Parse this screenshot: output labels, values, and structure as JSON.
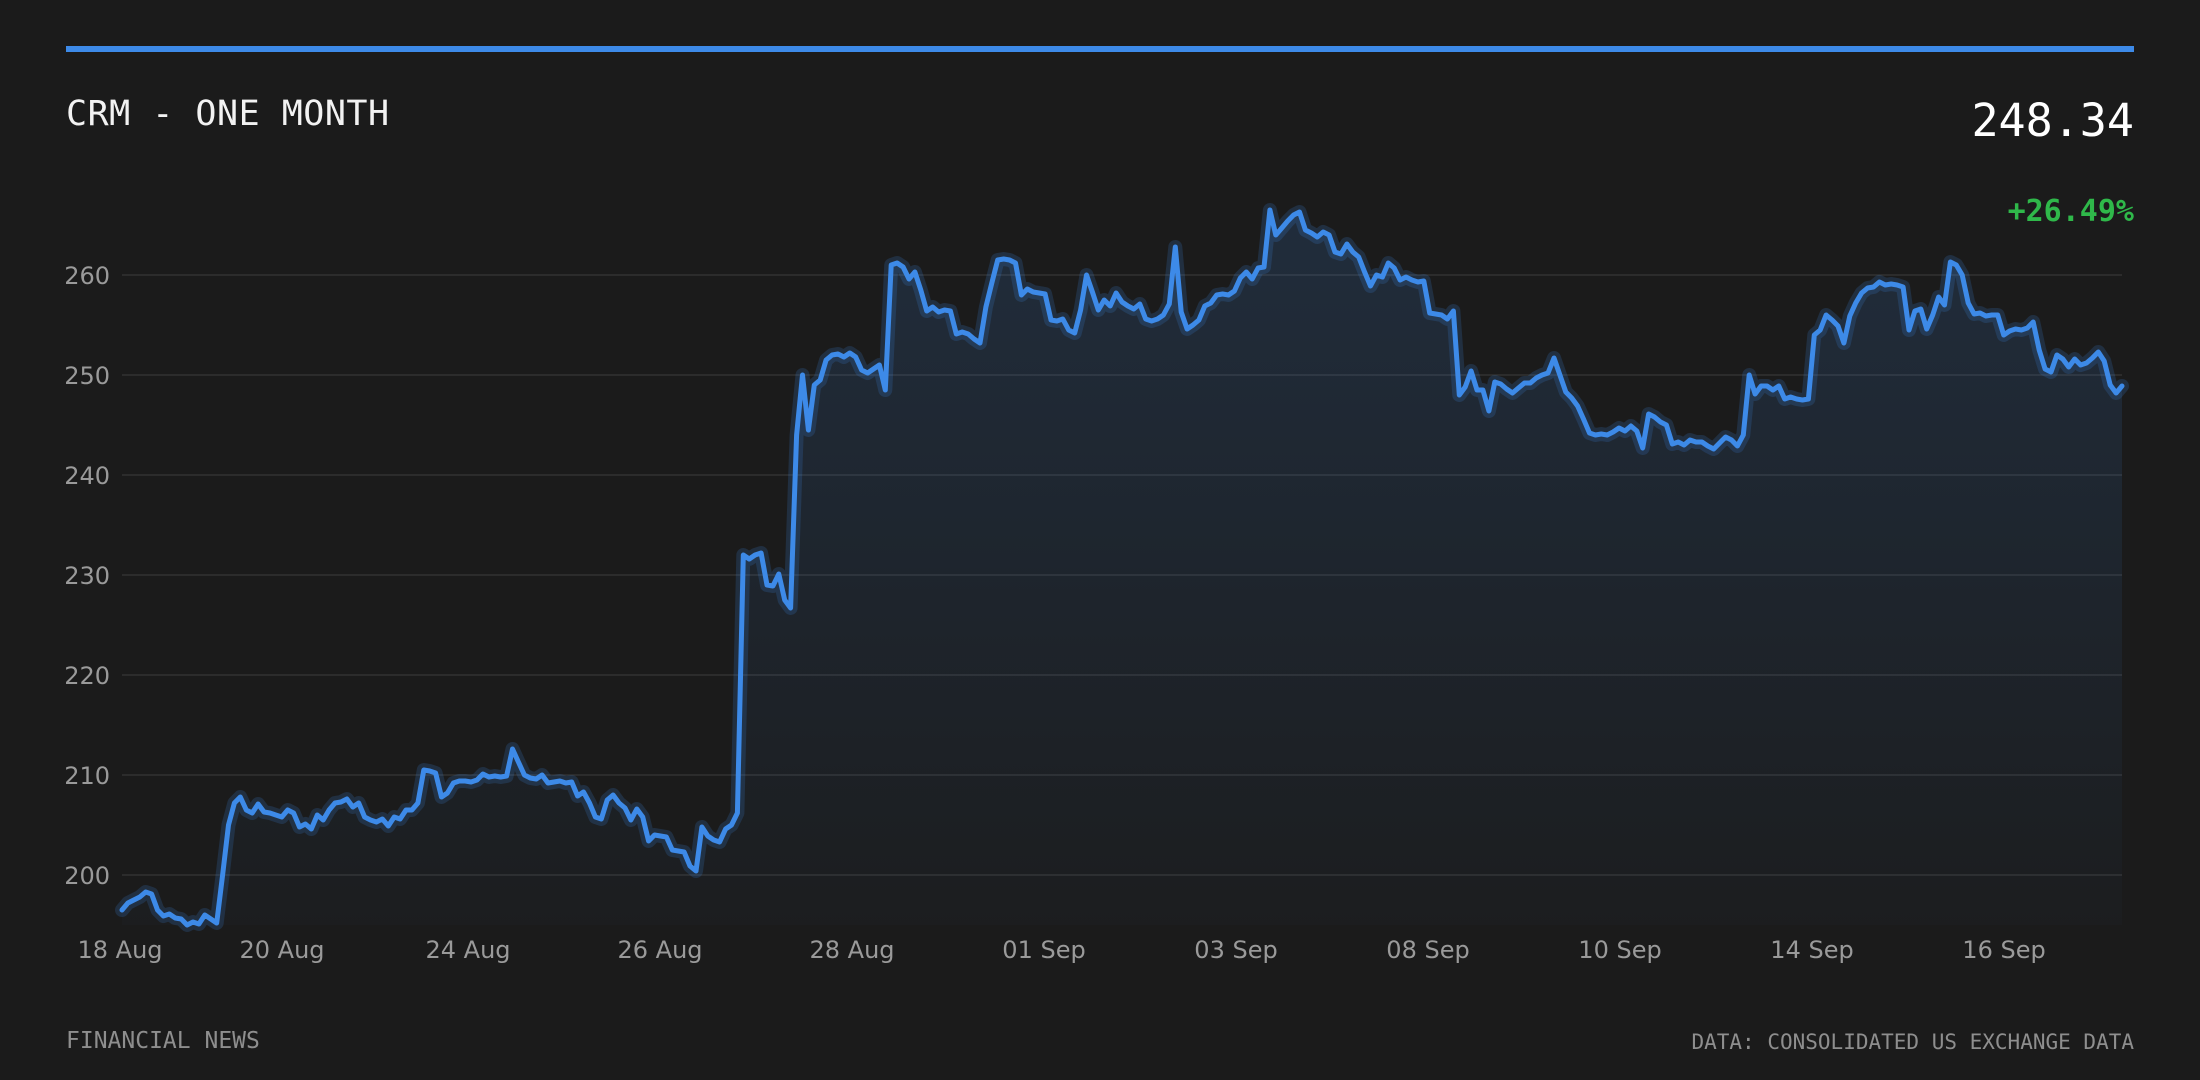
{
  "header": {
    "title": "CRM - ONE MONTH",
    "price": "248.34",
    "change": "+26.49%"
  },
  "footer": {
    "left": "FINANCIAL NEWS",
    "right": "DATA: CONSOLIDATED US EXCHANGE DATA"
  },
  "colors": {
    "background": "#1b1b1b",
    "accent": "#3d8ae8",
    "positive": "#2fb84a",
    "grid": "#333333",
    "tick_text": "#9a9a9a"
  },
  "chart_data": {
    "type": "area",
    "title": "CRM - ONE MONTH",
    "xlabel": "",
    "ylabel": "",
    "ylim": [
      195,
      266
    ],
    "y_ticks": [
      200,
      210,
      220,
      230,
      240,
      250,
      260
    ],
    "x_tick_labels": [
      "18 Aug",
      "20 Aug",
      "24 Aug",
      "26 Aug",
      "28 Aug",
      "01 Sep",
      "03 Sep",
      "08 Sep",
      "10 Sep",
      "14 Sep",
      "16 Sep"
    ],
    "grid": true,
    "legend": "none",
    "series": [
      {
        "values": [
          196.5,
          197.2,
          197.5,
          197.8,
          198.3,
          198.1,
          196.5,
          195.9,
          196.1,
          195.7,
          195.6,
          195.0,
          195.3,
          195.1,
          196.0,
          195.6,
          195.2,
          200.0,
          205.0,
          207.2,
          207.8,
          206.5,
          206.2,
          207.1,
          206.3,
          206.2,
          206.0,
          205.8,
          206.5,
          206.2,
          204.8,
          205.1,
          204.6,
          206.0,
          205.5,
          206.5,
          207.2,
          207.3,
          207.6,
          206.8,
          207.2,
          205.8,
          205.5,
          205.3,
          205.6,
          204.9,
          205.8,
          205.6,
          206.5,
          206.5,
          207.2,
          210.5,
          210.4,
          210.2,
          207.8,
          208.2,
          209.2,
          209.4,
          209.4,
          209.3,
          209.5,
          210.1,
          209.8,
          209.9,
          209.8,
          209.9,
          212.6,
          211.3,
          210.0,
          209.7,
          209.6,
          210.0,
          209.2,
          209.3,
          209.4,
          209.2,
          209.3,
          207.9,
          208.3,
          207.2,
          205.8,
          205.6,
          207.5,
          208.0,
          207.2,
          206.7,
          205.5,
          206.6,
          205.8,
          203.4,
          204.0,
          203.9,
          203.8,
          202.5,
          202.4,
          202.3,
          200.9,
          200.4,
          204.8,
          203.9,
          203.5,
          203.3,
          204.6,
          205.0,
          206.2,
          232.0,
          231.6,
          232.0,
          232.2,
          229.0,
          228.9,
          230.1,
          227.5,
          226.7,
          244.0,
          250.0,
          244.5,
          249.0,
          249.5,
          251.5,
          252.0,
          252.1,
          251.8,
          252.2,
          251.8,
          250.5,
          250.2,
          250.6,
          251.0,
          248.5,
          261.0,
          261.2,
          260.8,
          259.6,
          260.3,
          258.5,
          256.4,
          256.8,
          256.3,
          256.5,
          256.4,
          254.1,
          254.3,
          254.1,
          253.6,
          253.2,
          256.8,
          259.2,
          261.5,
          261.6,
          261.5,
          261.2,
          258.0,
          258.6,
          258.3,
          258.2,
          258.1,
          255.5,
          255.4,
          255.6,
          254.5,
          254.2,
          256.5,
          260.0,
          258.3,
          256.5,
          257.5,
          256.9,
          258.2,
          257.3,
          256.9,
          256.6,
          257.1,
          255.6,
          255.4,
          255.6,
          256.0,
          257.1,
          262.8,
          256.3,
          254.6,
          255.0,
          255.5,
          256.9,
          257.2,
          258.0,
          258.1,
          258.0,
          258.4,
          259.7,
          260.3,
          259.6,
          260.7,
          260.8,
          266.5,
          264.0,
          264.7,
          265.4,
          266.0,
          266.3,
          264.5,
          264.2,
          263.8,
          264.3,
          264.0,
          262.3,
          262.1,
          263.1,
          262.3,
          261.8,
          260.3,
          258.9,
          260.0,
          259.8,
          261.2,
          260.7,
          259.5,
          259.8,
          259.5,
          259.3,
          259.4,
          256.2,
          256.1,
          256.0,
          255.6,
          256.4,
          248.0,
          248.8,
          250.4,
          248.5,
          248.5,
          246.4,
          249.3,
          249.1,
          248.6,
          248.2,
          248.7,
          249.2,
          249.2,
          249.7,
          250.0,
          250.2,
          251.7,
          250.0,
          248.3,
          247.7,
          246.9,
          245.6,
          244.2,
          244.0,
          244.1,
          244.0,
          244.3,
          244.7,
          244.4,
          244.9,
          244.4,
          242.7,
          246.1,
          245.8,
          245.3,
          245.0,
          243.1,
          243.3,
          243.0,
          243.5,
          243.3,
          243.3,
          242.9,
          242.6,
          243.2,
          243.8,
          243.5,
          242.9,
          244.0,
          250.0,
          248.1,
          248.9,
          248.9,
          248.5,
          248.9,
          247.6,
          247.8,
          247.6,
          247.5,
          247.6,
          254.0,
          254.5,
          256.0,
          255.5,
          254.9,
          253.2,
          255.9,
          257.2,
          258.2,
          258.7,
          258.8,
          259.3,
          259.0,
          259.1,
          259.0,
          258.8,
          254.5,
          256.4,
          256.6,
          254.6,
          256.0,
          257.8,
          257.0,
          261.3,
          261.0,
          260.0,
          257.2,
          256.1,
          256.2,
          255.9,
          256.0,
          256.0,
          254.0,
          254.4,
          254.6,
          254.5,
          254.7,
          255.3,
          252.5,
          250.6,
          250.3,
          252.0,
          251.6,
          250.8,
          251.6,
          251.0,
          251.2,
          251.7,
          252.3,
          251.4,
          249.0,
          248.2,
          248.9
        ]
      }
    ]
  }
}
